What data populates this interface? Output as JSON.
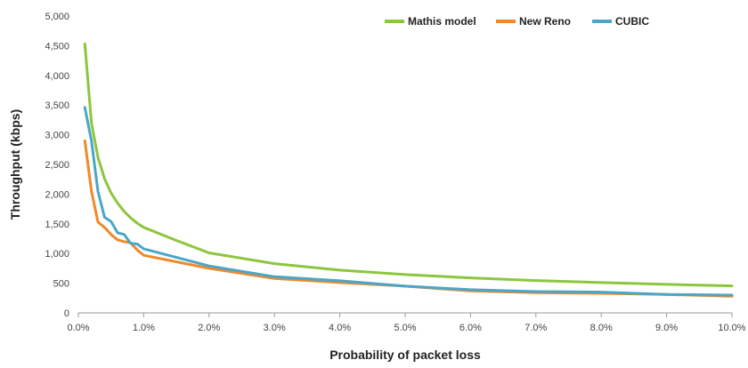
{
  "chart_data": {
    "type": "line",
    "xlabel": "Probability of packet loss",
    "ylabel": "Throughput (kbps)",
    "xlim": [
      0,
      10
    ],
    "ylim": [
      0,
      5000
    ],
    "x_ticks": [
      0,
      1,
      2,
      3,
      4,
      5,
      6,
      7,
      8,
      9,
      10
    ],
    "x_tick_labels": [
      "0.0%",
      "1.0%",
      "2.0%",
      "3.0%",
      "4.0%",
      "5.0%",
      "6.0%",
      "7.0%",
      "8.0%",
      "9.0%",
      "10.0%"
    ],
    "y_ticks": [
      0,
      500,
      1000,
      1500,
      2000,
      2500,
      3000,
      3500,
      4000,
      4500,
      5000
    ],
    "y_tick_labels": [
      "0",
      "500",
      "1,000",
      "1,500",
      "2,000",
      "2,500",
      "3,000",
      "3,500",
      "4,000",
      "4,500",
      "5,000"
    ],
    "grid": false,
    "legend_position": "top-right",
    "series": [
      {
        "name": "Mathis model",
        "color": "#8cc63f",
        "x": [
          0.1,
          0.2,
          0.3,
          0.4,
          0.5,
          0.6,
          0.7,
          0.8,
          0.9,
          1.0,
          1.5,
          2.0,
          3.0,
          4.0,
          5.0,
          6.0,
          7.0,
          8.0,
          9.0,
          10.0
        ],
        "y": [
          4530,
          3200,
          2620,
          2260,
          2020,
          1850,
          1710,
          1600,
          1510,
          1440,
          1220,
          1010,
          830,
          720,
          645,
          590,
          545,
          510,
          480,
          455
        ]
      },
      {
        "name": "New Reno",
        "color": "#f0892a",
        "x": [
          0.1,
          0.2,
          0.3,
          0.4,
          0.5,
          0.6,
          0.7,
          0.8,
          0.9,
          1.0,
          2.0,
          3.0,
          4.0,
          5.0,
          6.0,
          7.0,
          8.0,
          9.0,
          10.0
        ],
        "y": [
          2900,
          2050,
          1530,
          1440,
          1320,
          1230,
          1200,
          1180,
          1060,
          970,
          750,
          580,
          510,
          450,
          370,
          340,
          330,
          310,
          280
        ]
      },
      {
        "name": "CUBIC",
        "color": "#4aa6c8",
        "x": [
          0.1,
          0.2,
          0.3,
          0.4,
          0.5,
          0.6,
          0.7,
          0.8,
          0.9,
          1.0,
          2.0,
          3.0,
          4.0,
          5.0,
          6.0,
          7.0,
          8.0,
          9.0,
          10.0
        ],
        "y": [
          3460,
          2900,
          2050,
          1610,
          1540,
          1350,
          1320,
          1170,
          1160,
          1080,
          790,
          610,
          540,
          450,
          390,
          360,
          350,
          310,
          300
        ]
      }
    ]
  }
}
